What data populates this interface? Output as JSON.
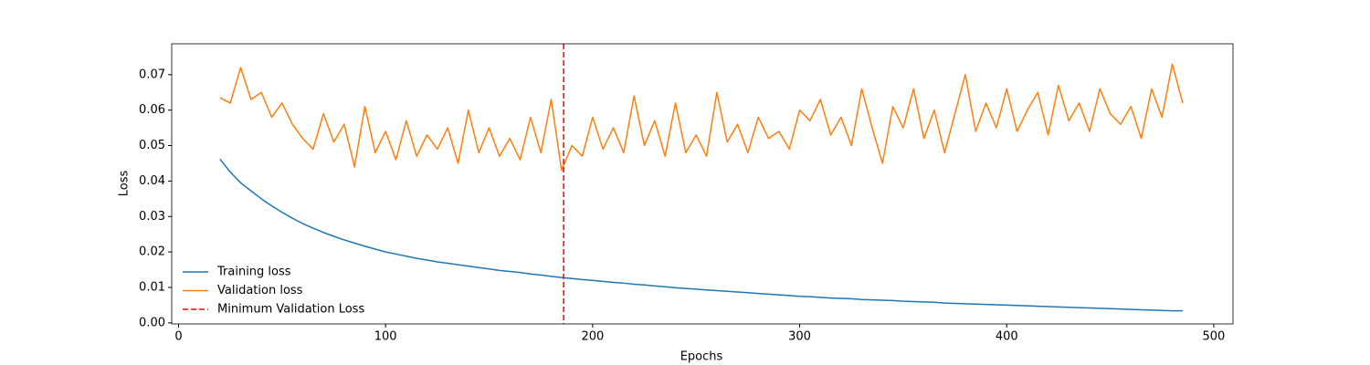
{
  "chart_data": {
    "type": "line",
    "xlabel": "Epochs",
    "ylabel": "Loss",
    "x": [
      20,
      25,
      30,
      35,
      40,
      45,
      50,
      55,
      60,
      65,
      70,
      75,
      80,
      85,
      90,
      95,
      100,
      105,
      110,
      115,
      120,
      125,
      130,
      135,
      140,
      145,
      150,
      155,
      160,
      165,
      170,
      175,
      180,
      185,
      190,
      195,
      200,
      205,
      210,
      215,
      220,
      225,
      230,
      235,
      240,
      245,
      250,
      255,
      260,
      265,
      270,
      275,
      280,
      285,
      290,
      295,
      300,
      305,
      310,
      315,
      320,
      325,
      330,
      335,
      340,
      345,
      350,
      355,
      360,
      365,
      370,
      375,
      380,
      385,
      390,
      395,
      400,
      405,
      410,
      415,
      420,
      425,
      430,
      435,
      440,
      445,
      450,
      455,
      460,
      465,
      470,
      475,
      480,
      485
    ],
    "series": [
      {
        "name": "Training loss",
        "color": "#1f77b4",
        "values": [
          0.0462,
          0.0425,
          0.0395,
          0.0372,
          0.035,
          0.033,
          0.0312,
          0.0295,
          0.028,
          0.0267,
          0.0255,
          0.0244,
          0.0234,
          0.0225,
          0.0216,
          0.0208,
          0.02,
          0.0194,
          0.0188,
          0.0182,
          0.0177,
          0.0172,
          0.0168,
          0.0164,
          0.016,
          0.0156,
          0.0152,
          0.0148,
          0.0145,
          0.0142,
          0.0138,
          0.0135,
          0.0131,
          0.0128,
          0.0125,
          0.0122,
          0.012,
          0.0117,
          0.0114,
          0.0112,
          0.0109,
          0.0107,
          0.0104,
          0.0102,
          0.0099,
          0.0097,
          0.0095,
          0.0093,
          0.0091,
          0.0089,
          0.0087,
          0.0085,
          0.0083,
          0.0081,
          0.0079,
          0.0077,
          0.0075,
          0.0074,
          0.0072,
          0.007,
          0.0069,
          0.0068,
          0.0066,
          0.0065,
          0.0064,
          0.0063,
          0.0061,
          0.006,
          0.0059,
          0.0058,
          0.0056,
          0.0055,
          0.0054,
          0.0053,
          0.0052,
          0.0051,
          0.005,
          0.0049,
          0.0048,
          0.0047,
          0.0046,
          0.0045,
          0.0044,
          0.0043,
          0.0042,
          0.0041,
          0.004,
          0.0039,
          0.0038,
          0.0037,
          0.0036,
          0.0035,
          0.0034,
          0.0034
        ]
      },
      {
        "name": "Validation loss",
        "color": "#ff7f0e",
        "values": [
          0.0635,
          0.062,
          0.072,
          0.063,
          0.065,
          0.058,
          0.062,
          0.056,
          0.052,
          0.049,
          0.059,
          0.051,
          0.056,
          0.044,
          0.061,
          0.048,
          0.054,
          0.046,
          0.057,
          0.047,
          0.053,
          0.049,
          0.055,
          0.045,
          0.06,
          0.048,
          0.055,
          0.047,
          0.052,
          0.046,
          0.058,
          0.048,
          0.063,
          0.043,
          0.05,
          0.047,
          0.058,
          0.049,
          0.055,
          0.048,
          0.064,
          0.05,
          0.057,
          0.047,
          0.062,
          0.048,
          0.053,
          0.047,
          0.065,
          0.051,
          0.056,
          0.048,
          0.058,
          0.052,
          0.054,
          0.049,
          0.06,
          0.057,
          0.063,
          0.053,
          0.058,
          0.05,
          0.066,
          0.055,
          0.045,
          0.061,
          0.055,
          0.066,
          0.052,
          0.06,
          0.048,
          0.059,
          0.07,
          0.054,
          0.062,
          0.055,
          0.066,
          0.054,
          0.06,
          0.065,
          0.053,
          0.067,
          0.057,
          0.062,
          0.054,
          0.066,
          0.059,
          0.056,
          0.061,
          0.052,
          0.066,
          0.058,
          0.073,
          0.062
        ]
      }
    ],
    "reference_lines": [
      {
        "name": "Minimum Validation Loss",
        "x": 186,
        "color": "#ff0000",
        "style": "dashed"
      }
    ],
    "xlim": [
      -3.3,
      509.3
    ],
    "xticks": [
      0,
      100,
      200,
      300,
      400,
      500
    ],
    "ylim": [
      -0.0003,
      0.0787
    ],
    "yticks": [
      {
        "value": 0,
        "label": "0.00"
      },
      {
        "value": 0.01,
        "label": "0.01"
      },
      {
        "value": 0.02,
        "label": "0.02"
      },
      {
        "value": 0.03,
        "label": "0.03"
      },
      {
        "value": 0.04,
        "label": "0.04"
      },
      {
        "value": 0.05,
        "label": "0.05"
      },
      {
        "value": 0.06,
        "label": "0.06"
      },
      {
        "value": 0.07,
        "label": "0.07"
      }
    ],
    "legend": "lower left",
    "grid": false
  }
}
